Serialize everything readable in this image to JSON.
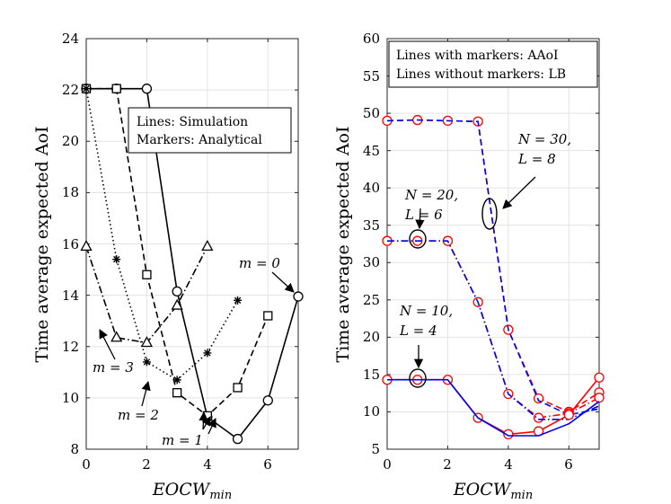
{
  "chart_data": [
    {
      "type": "line",
      "xlabel": "EOCW",
      "xlabel_sub": "min",
      "ylabel": "Time average expected AoI",
      "xlim": [
        0,
        7
      ],
      "ylim": [
        8,
        24
      ],
      "xticks": [
        "0",
        "2",
        "4",
        "6"
      ],
      "yticks": [
        "8",
        "10",
        "12",
        "14",
        "16",
        "18",
        "20",
        "22",
        "24"
      ],
      "grid": true,
      "legend": {
        "line1": "Lines: Simulation",
        "line2": "Markers: Analytical",
        "placement": "top-right"
      },
      "series": [
        {
          "name": "m = 0",
          "style": "solid",
          "marker": "circle",
          "x": [
            0,
            1,
            2,
            3,
            4,
            5,
            6,
            7
          ],
          "values": [
            22.05,
            22.05,
            22.05,
            14.15,
            9.25,
            8.4,
            9.9,
            13.95
          ]
        },
        {
          "name": "m = 1",
          "style": "dashed",
          "marker": "square",
          "x": [
            0,
            1,
            2,
            3,
            4,
            5,
            6
          ],
          "values": [
            22.05,
            22.05,
            14.8,
            10.2,
            9.3,
            10.4,
            13.2
          ]
        },
        {
          "name": "m = 2",
          "style": "dotted",
          "marker": "asterisk",
          "x": [
            0,
            1,
            2,
            3,
            4,
            5
          ],
          "values": [
            22.05,
            15.4,
            11.4,
            10.7,
            11.75,
            13.8
          ]
        },
        {
          "name": "m = 3",
          "style": "dashdot",
          "marker": "triangle",
          "x": [
            0,
            1,
            2,
            3,
            4
          ],
          "values": [
            15.9,
            12.35,
            12.15,
            13.6,
            15.9
          ]
        }
      ],
      "annotations": [
        "m = 0",
        "m = 1",
        "m = 2",
        "m = 3"
      ]
    },
    {
      "type": "line",
      "xlabel": "EOCW",
      "xlabel_sub": "min",
      "ylabel": "Time average expected AoI",
      "xlim": [
        0,
        7
      ],
      "ylim": [
        5,
        60
      ],
      "xticks": [
        "0",
        "2",
        "4",
        "6"
      ],
      "yticks": [
        "5",
        "10",
        "15",
        "20",
        "25",
        "30",
        "35",
        "40",
        "45",
        "50",
        "55",
        "60"
      ],
      "grid": true,
      "legend": {
        "line1": "Lines with markers: AAoI",
        "line2": "Lines without markers: LB",
        "placement": "top-right"
      },
      "series": [
        {
          "name": "N = 30 AAoI",
          "style": "dashed",
          "color": "#ff0000",
          "marker": "circle",
          "x": [
            0,
            1,
            2,
            3,
            4,
            5,
            6,
            7
          ],
          "values": [
            49.0,
            49.1,
            49.0,
            48.9,
            21.0,
            11.8,
            10.0,
            12.6
          ]
        },
        {
          "name": "N = 30 LB",
          "style": "dashed",
          "color": "#0000ee",
          "marker": "none",
          "x": [
            0,
            1,
            2,
            3,
            4,
            5,
            6,
            7
          ],
          "values": [
            49.0,
            49.1,
            49.0,
            48.9,
            21.0,
            11.5,
            9.6,
            10.4
          ]
        },
        {
          "name": "N = 20 AAoI",
          "style": "dashdot",
          "color": "#ff0000",
          "marker": "circle",
          "x": [
            0,
            1,
            2,
            3,
            4,
            5,
            6,
            7
          ],
          "values": [
            32.9,
            32.9,
            32.9,
            24.7,
            12.4,
            9.2,
            9.8,
            11.9
          ]
        },
        {
          "name": "N = 20 LB",
          "style": "dashdot",
          "color": "#0000ee",
          "marker": "none",
          "x": [
            0,
            1,
            2,
            3,
            4,
            5,
            6,
            7
          ],
          "values": [
            32.9,
            32.9,
            32.9,
            24.7,
            12.4,
            9.0,
            9.0,
            10.8
          ]
        },
        {
          "name": "N = 10 AAoI",
          "style": "solid",
          "color": "#ff0000",
          "marker": "circle",
          "x": [
            0,
            1,
            2,
            3,
            4,
            5,
            6,
            7
          ],
          "values": [
            14.3,
            14.3,
            14.3,
            9.2,
            7.0,
            7.4,
            9.6,
            14.6
          ]
        },
        {
          "name": "N = 10 LB",
          "style": "solid",
          "color": "#0000ee",
          "marker": "none",
          "x": [
            0,
            1,
            2,
            3,
            4,
            5,
            6,
            7
          ],
          "values": [
            14.3,
            14.3,
            14.3,
            9.2,
            6.8,
            6.8,
            8.4,
            11.4
          ]
        }
      ],
      "annotations": [
        {
          "line1": "N = 30,",
          "line2": "L = 8"
        },
        {
          "line1": "N = 20,",
          "line2": "L = 6"
        },
        {
          "line1": "N = 10,",
          "line2": "L = 4"
        }
      ]
    }
  ]
}
